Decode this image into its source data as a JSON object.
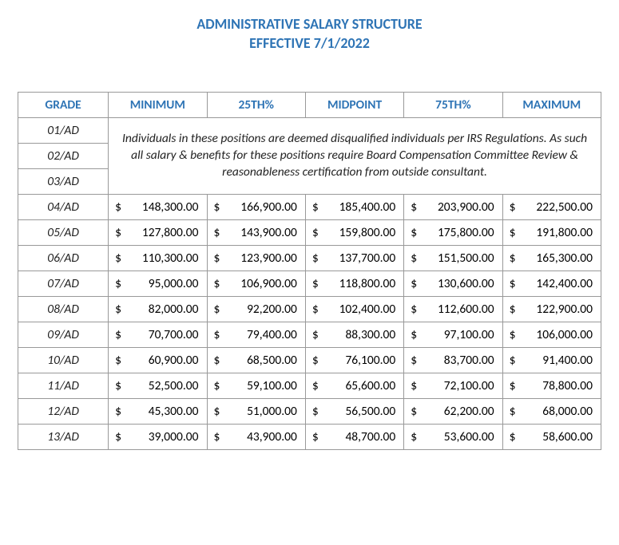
{
  "title_line1": "ADMINISTRATIVE SALARY STRUCTURE",
  "title_line2": "EFFECTIVE 7/1/2022",
  "columns": [
    "GRADE",
    "MINIMUM",
    "25TH%",
    "MIDPOINT",
    "75TH%",
    "MAXIMUM"
  ],
  "note_grades": [
    "01/AD",
    "02/AD",
    "03/AD"
  ],
  "note_text": "Individuals in these positions are deemed disqualified individuals per IRS Regulations.  As such all salary & benefits for these positions require Board Compensation Committee Review & reasonableness certification from outside consultant.",
  "rows": [
    {
      "grade": "04/AD",
      "values": [
        "148,300.00",
        "166,900.00",
        "185,400.00",
        "203,900.00",
        "222,500.00"
      ]
    },
    {
      "grade": "05/AD",
      "values": [
        "127,800.00",
        "143,900.00",
        "159,800.00",
        "175,800.00",
        "191,800.00"
      ]
    },
    {
      "grade": "06/AD",
      "values": [
        "110,300.00",
        "123,900.00",
        "137,700.00",
        "151,500.00",
        "165,300.00"
      ]
    },
    {
      "grade": "07/AD",
      "values": [
        "95,000.00",
        "106,900.00",
        "118,800.00",
        "130,600.00",
        "142,400.00"
      ]
    },
    {
      "grade": "08/AD",
      "values": [
        "82,000.00",
        "92,200.00",
        "102,400.00",
        "112,600.00",
        "122,900.00"
      ]
    },
    {
      "grade": "09/AD",
      "values": [
        "70,700.00",
        "79,400.00",
        "88,300.00",
        "97,100.00",
        "106,000.00"
      ]
    },
    {
      "grade": "10/AD",
      "values": [
        "60,900.00",
        "68,500.00",
        "76,100.00",
        "83,700.00",
        "91,400.00"
      ]
    },
    {
      "grade": "11/AD",
      "values": [
        "52,500.00",
        "59,100.00",
        "65,600.00",
        "72,100.00",
        "78,800.00"
      ]
    },
    {
      "grade": "12/AD",
      "values": [
        "45,300.00",
        "51,000.00",
        "56,500.00",
        "62,200.00",
        "68,000.00"
      ]
    },
    {
      "grade": "13/AD",
      "values": [
        "39,000.00",
        "43,900.00",
        "48,700.00",
        "53,600.00",
        "58,600.00"
      ]
    }
  ],
  "currency_symbol": "$",
  "colors": {
    "accent": "#2e74b5",
    "border": "#999999",
    "text": "#222222",
    "background": "#ffffff"
  },
  "fonts": {
    "title_size_pt": 14,
    "body_size_pt": 12,
    "family": "Calibri"
  }
}
